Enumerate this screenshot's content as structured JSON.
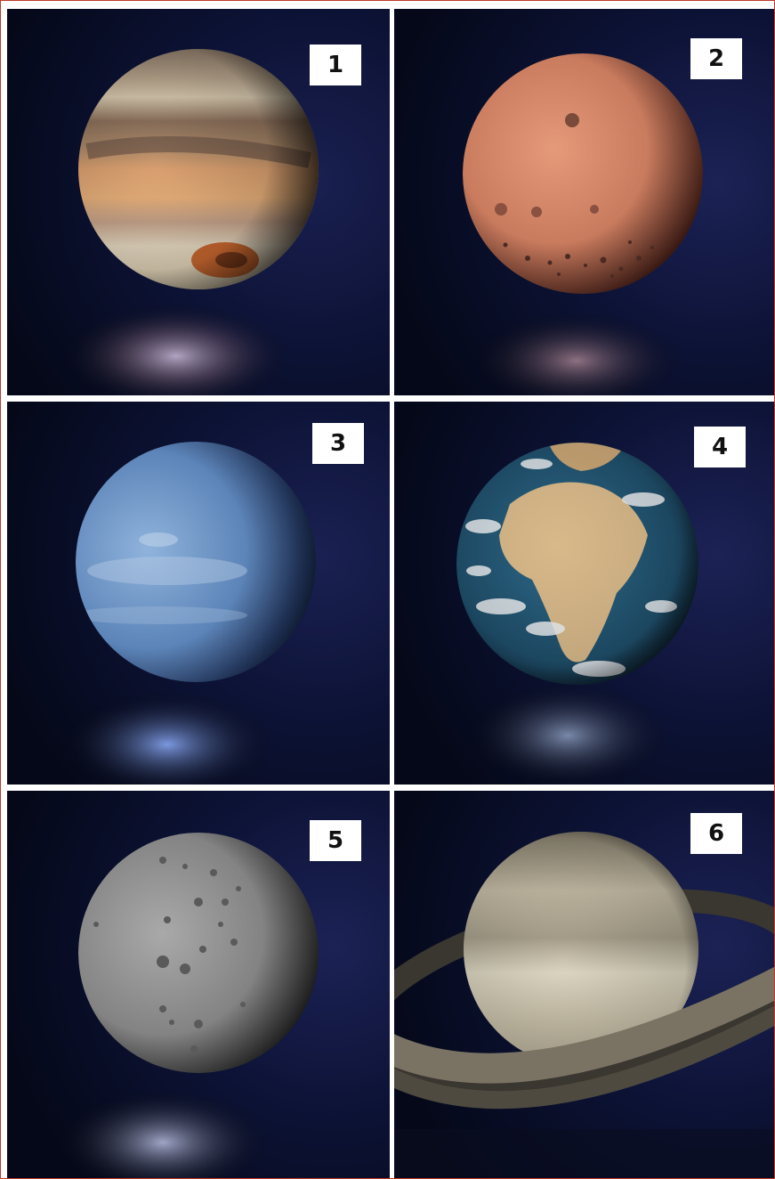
{
  "panels": [
    {
      "label": "1",
      "depicts": "gas-giant-banded-planet"
    },
    {
      "label": "2",
      "depicts": "red-cratered-planet"
    },
    {
      "label": "3",
      "depicts": "blue-ice-giant-planet"
    },
    {
      "label": "4",
      "depicts": "earth-like-planet"
    },
    {
      "label": "5",
      "depicts": "grey-cratered-moon"
    },
    {
      "label": "6",
      "depicts": "ringed-planet"
    }
  ],
  "colors": {
    "space_background": "#0b1030",
    "label_background": "#ffffff",
    "label_text": "#111111",
    "divider": "#ffffff",
    "outer_border": "#c0392b"
  }
}
